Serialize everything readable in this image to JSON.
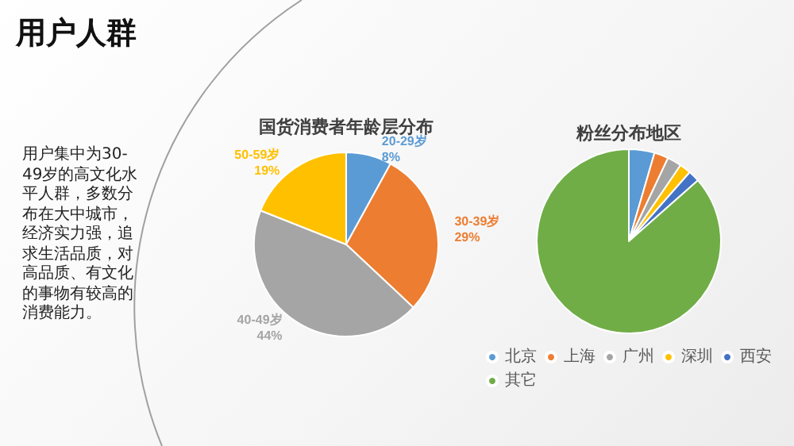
{
  "chart_data": [
    {
      "type": "other",
      "title": "用户人群",
      "annotations": [
        "用户集中为30-49岁的高文化水平人群，多数分布在大中城市，经济实力强，追求生活品质，对高品质、有文化的事物有较高的消费能力。"
      ]
    },
    {
      "type": "pie",
      "title": "国货消费者年龄层分布",
      "categories": [
        "20-29岁",
        "30-39岁",
        "40-49岁",
        "50-59岁"
      ],
      "values": [
        8,
        29,
        44,
        19
      ],
      "colors": [
        "#5b9bd5",
        "#ed7d31",
        "#a5a5a5",
        "#ffc000"
      ],
      "value_labels": [
        "8%",
        "29%",
        "44%",
        "19%"
      ]
    },
    {
      "type": "pie",
      "title": "粉丝分布地区",
      "categories": [
        "北京",
        "上海",
        "广州",
        "深圳",
        "西安",
        "其它"
      ],
      "values": [
        4.5,
        2.5,
        2.5,
        2,
        2,
        86.5
      ],
      "colors": [
        "#5b9bd5",
        "#ed7d31",
        "#a5a5a5",
        "#ffc000",
        "#4472c4",
        "#70ad47"
      ],
      "legend": "bottom"
    }
  ]
}
